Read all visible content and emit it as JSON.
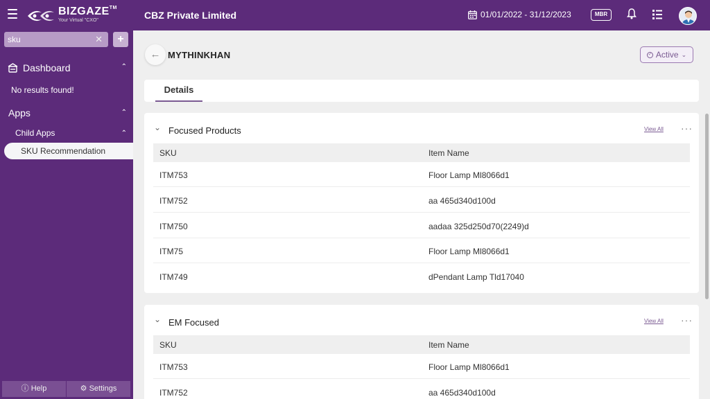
{
  "app": {
    "brand": "BIZGAZE",
    "tm": "TM",
    "tagline": "Your Virtual \"CXO\"",
    "company": "CBZ Private Limited",
    "date_range": "01/01/2022 - 31/12/2023",
    "mbr_label": "MBR"
  },
  "sidebar": {
    "search_value": "sku",
    "dashboard_label": "Dashboard",
    "no_results": "No results found!",
    "apps_label": "Apps",
    "child_apps_label": "Child Apps",
    "sku_recommendation_label": "SKU Recommendation",
    "help_label": "Help",
    "settings_label": "Settings"
  },
  "page": {
    "title": "MYTHINKHAN",
    "status": "Active",
    "tabs": [
      {
        "label": "Details"
      }
    ]
  },
  "sections": [
    {
      "title": "Focused Products",
      "view_all": "View All",
      "columns": [
        "SKU",
        "Item Name"
      ],
      "rows": [
        {
          "sku": "ITM753",
          "item": "Floor Lamp Ml8066d1"
        },
        {
          "sku": "ITM752",
          "item": "aa 465d340d100d"
        },
        {
          "sku": "ITM750",
          "item": "aadaa 325d250d70(2249)d"
        },
        {
          "sku": "ITM75",
          "item": "Floor Lamp Ml8066d1"
        },
        {
          "sku": "ITM749",
          "item": "dPendant Lamp Tld17040"
        }
      ]
    },
    {
      "title": "EM Focused",
      "view_all": "View All",
      "columns": [
        "SKU",
        "Item Name"
      ],
      "rows": [
        {
          "sku": "ITM753",
          "item": "Floor Lamp Ml8066d1"
        },
        {
          "sku": "ITM752",
          "item": "aa 465d340d100d"
        }
      ]
    }
  ],
  "colors": {
    "brand_purple": "#5c2b7a",
    "accent": "#7a5a92"
  }
}
